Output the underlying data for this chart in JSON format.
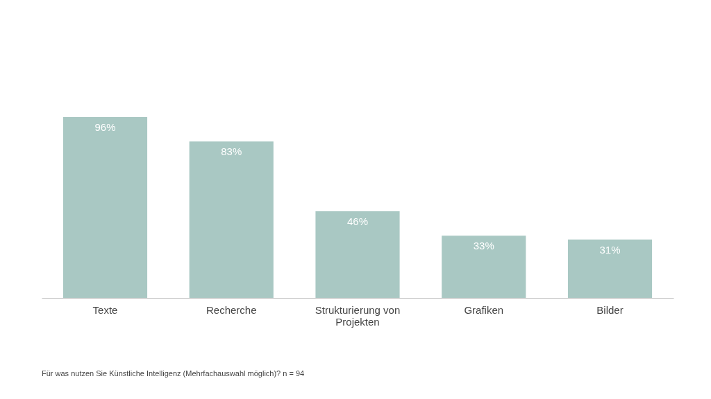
{
  "chart_data": {
    "type": "bar",
    "categories": [
      "Texte",
      "Recherche",
      "Strukturierung von Projekten",
      "Grafiken",
      "Bilder"
    ],
    "values": [
      96,
      83,
      46,
      33,
      31
    ],
    "value_labels": [
      "96%",
      "83%",
      "46%",
      "33%",
      "31%"
    ],
    "color": "#a9c8c3",
    "annotations": [
      "Für was nutzen Sie Künstliche Intelligenz (Mehrfachauswahl möglich)? n = 94"
    ],
    "grid": false
  }
}
